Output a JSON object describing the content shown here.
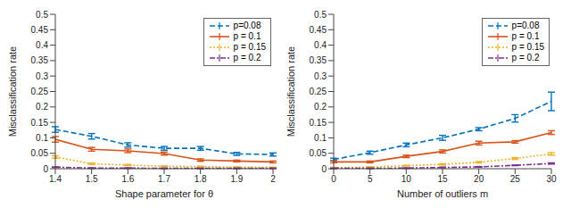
{
  "chart_data": [
    {
      "type": "line",
      "x_label": "Shape parameter for θ",
      "y_label": "Misclassification rate",
      "x": [
        1.4,
        1.5,
        1.6,
        1.7,
        1.8,
        1.9,
        2
      ],
      "xlim": [
        1.4,
        2
      ],
      "xticks": [
        1.4,
        1.5,
        1.6,
        1.7,
        1.8,
        1.9,
        2
      ],
      "ylim": [
        0,
        0.5
      ],
      "yticks": [
        0,
        0.05,
        0.1,
        0.15,
        0.2,
        0.25,
        0.3,
        0.35,
        0.4,
        0.45,
        0.5
      ],
      "grid": false,
      "legend": "upper right",
      "series": [
        {
          "name": "p=0.08",
          "color": "#0072bd",
          "line_style": "dashed",
          "values": [
            0.127,
            0.105,
            0.077,
            0.066,
            0.066,
            0.048,
            0.046
          ],
          "errors": [
            0.009,
            0.009,
            0.007,
            0.006,
            0.006,
            0.005,
            0.005
          ]
        },
        {
          "name": "p = 0.1",
          "color": "#d95319",
          "line_style": "solid",
          "values": [
            0.095,
            0.063,
            0.058,
            0.049,
            0.028,
            0.025,
            0.022
          ],
          "errors": [
            0.009,
            0.006,
            0.006,
            0.005,
            0.004,
            0.003,
            0.003
          ]
        },
        {
          "name": "p = 0.15",
          "color": "#edb120",
          "line_style": "dotted",
          "values": [
            0.038,
            0.016,
            0.012,
            0.008,
            0.007,
            0.005,
            0.004
          ],
          "errors": [
            0.004,
            0.002,
            0.002,
            0.001,
            0.001,
            0.001,
            0.001
          ]
        },
        {
          "name": "p = 0.2",
          "color": "#7e2f8e",
          "line_style": "dashdot",
          "values": [
            0.005,
            0.002,
            0.002,
            0.001,
            0.001,
            0.001,
            0.001
          ],
          "errors": [
            0.001,
            0.001,
            0.001,
            0.001,
            0.001,
            0.001,
            0.001
          ]
        }
      ]
    },
    {
      "type": "line",
      "x_label": "Number of outliers m",
      "y_label": "Misclassification rate",
      "x": [
        0,
        5,
        10,
        15,
        20,
        25,
        30
      ],
      "xlim": [
        0,
        30
      ],
      "xticks": [
        0,
        5,
        10,
        15,
        20,
        25,
        30
      ],
      "ylim": [
        0,
        0.5
      ],
      "yticks": [
        0,
        0.05,
        0.1,
        0.15,
        0.2,
        0.25,
        0.3,
        0.35,
        0.4,
        0.45,
        0.5
      ],
      "grid": false,
      "legend": "upper right",
      "series": [
        {
          "name": "p=0.08",
          "color": "#0072bd",
          "line_style": "dashed",
          "values": [
            0.03,
            0.052,
            0.077,
            0.1,
            0.128,
            0.163,
            0.218
          ],
          "errors": [
            0.004,
            0.005,
            0.006,
            0.008,
            0.005,
            0.012,
            0.03
          ]
        },
        {
          "name": "p = 0.1",
          "color": "#d95319",
          "line_style": "solid",
          "values": [
            0.022,
            0.022,
            0.04,
            0.056,
            0.083,
            0.087,
            0.117
          ],
          "errors": [
            0.003,
            0.003,
            0.004,
            0.005,
            0.006,
            0.004,
            0.006
          ]
        },
        {
          "name": "p = 0.15",
          "color": "#edb120",
          "line_style": "dotted",
          "values": [
            0.003,
            0.005,
            0.01,
            0.014,
            0.021,
            0.033,
            0.048
          ],
          "errors": [
            0.001,
            0.001,
            0.001,
            0.002,
            0.002,
            0.003,
            0.004
          ]
        },
        {
          "name": "p = 0.2",
          "color": "#7e2f8e",
          "line_style": "dashdot",
          "values": [
            0.001,
            0.001,
            0.002,
            0.004,
            0.006,
            0.011,
            0.017
          ],
          "errors": [
            0.001,
            0.001,
            0.001,
            0.001,
            0.001,
            0.001,
            0.002
          ]
        }
      ]
    }
  ]
}
